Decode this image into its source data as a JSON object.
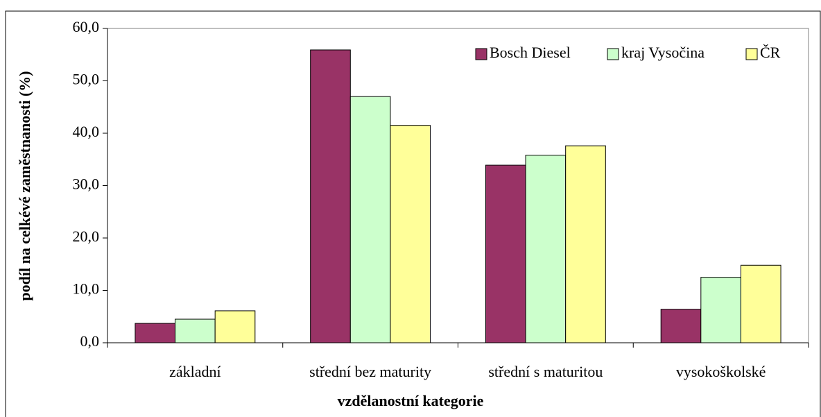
{
  "chart_data": {
    "type": "bar",
    "categories": [
      "základní",
      "střední bez maturity",
      "střední s maturitou",
      "vysokoškolské"
    ],
    "series": [
      {
        "name": "Bosch Diesel",
        "color": "#993366",
        "values": [
          3.7,
          55.9,
          33.9,
          6.4
        ]
      },
      {
        "name": "kraj Vysočina",
        "color": "#ccffcc",
        "values": [
          4.5,
          47.0,
          35.8,
          12.5
        ]
      },
      {
        "name": "ČR",
        "color": "#ffff99",
        "values": [
          6.1,
          41.5,
          37.6,
          14.8
        ]
      }
    ],
    "x_label": "vzdělanostní kategorie",
    "y_label": "podíl na celkévé zaměstnanosti (%)",
    "ylim": [
      0,
      60
    ],
    "yticks": [
      {
        "value": 0,
        "label": "0,0"
      },
      {
        "value": 10,
        "label": "10,0"
      },
      {
        "value": 20,
        "label": "20,0"
      },
      {
        "value": 30,
        "label": "30,0"
      },
      {
        "value": 40,
        "label": "40,0"
      },
      {
        "value": 50,
        "label": "50,0"
      },
      {
        "value": 60,
        "label": "60,0"
      }
    ],
    "legend": "top-right",
    "grid": false
  }
}
